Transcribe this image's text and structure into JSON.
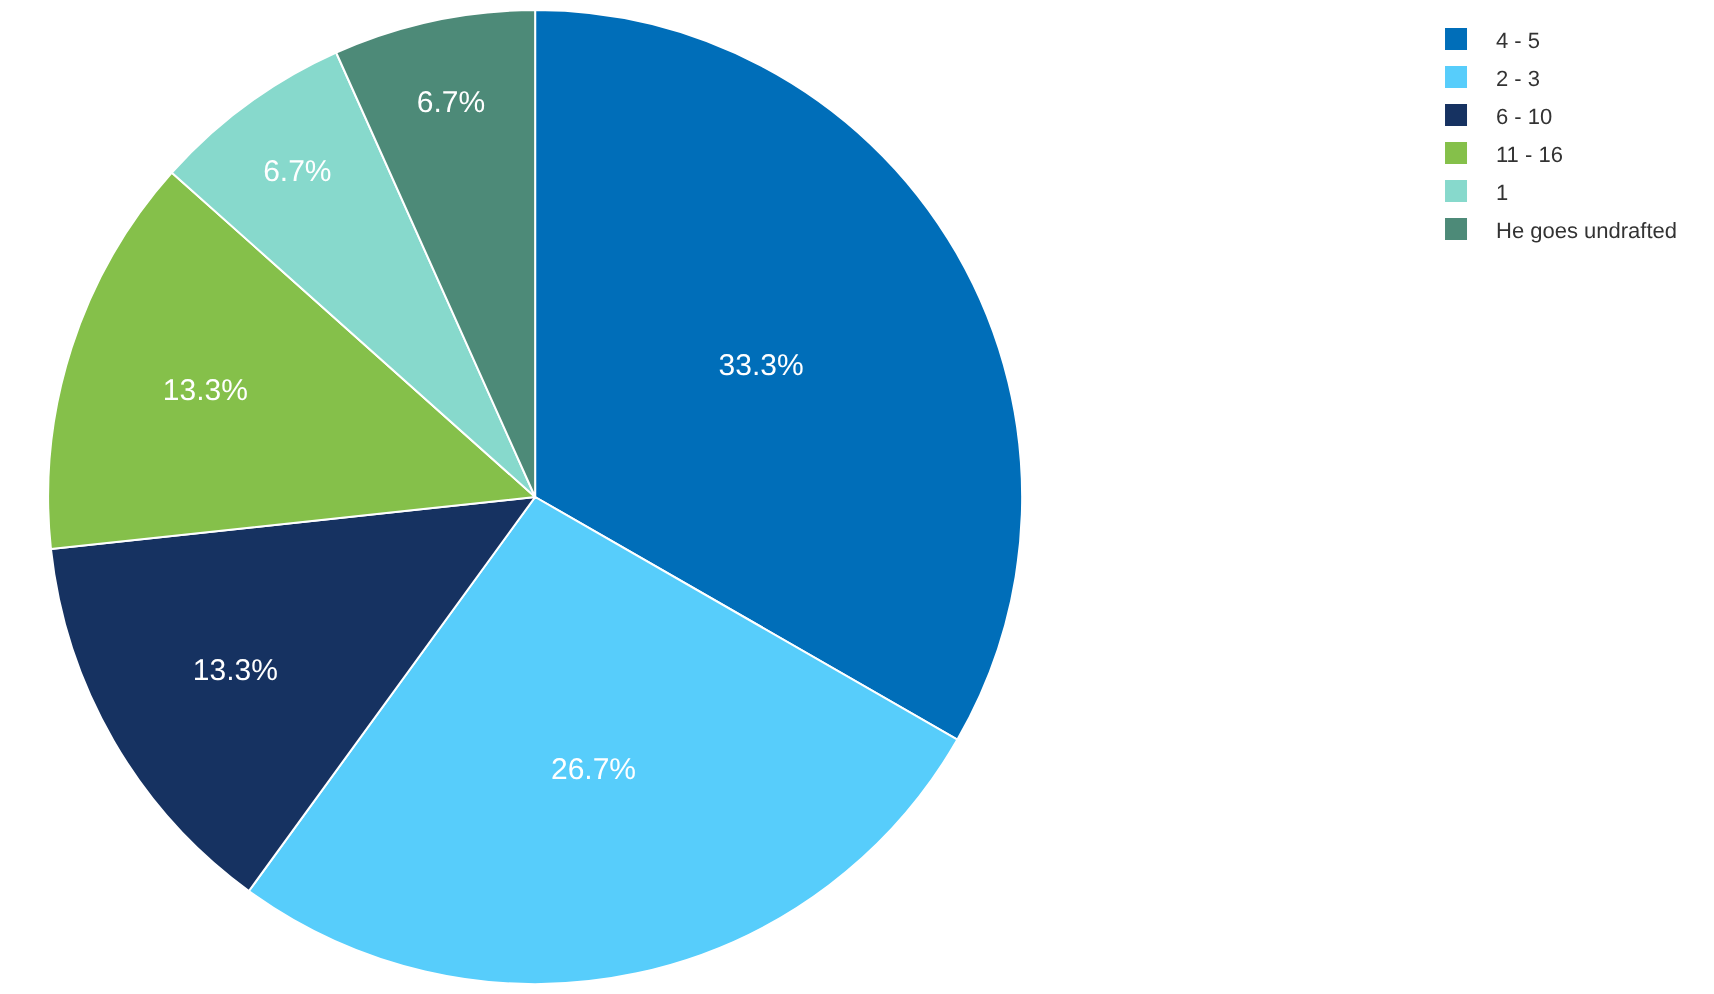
{
  "chart_data": {
    "type": "pie",
    "categories": [
      "4 - 5",
      "2 - 3",
      "6 - 10",
      "11 - 16",
      "1",
      "He goes undrafted"
    ],
    "values": [
      33.3,
      26.7,
      13.3,
      13.3,
      6.7,
      6.7
    ],
    "value_labels": [
      "33.3%",
      "26.7%",
      "13.3%",
      "13.3%",
      "6.7%",
      "6.7%"
    ],
    "colors": [
      "#006eb9",
      "#57cdfb",
      "#163261",
      "#85c04a",
      "#87d9cc",
      "#4d8a78"
    ],
    "legend": "top right"
  }
}
